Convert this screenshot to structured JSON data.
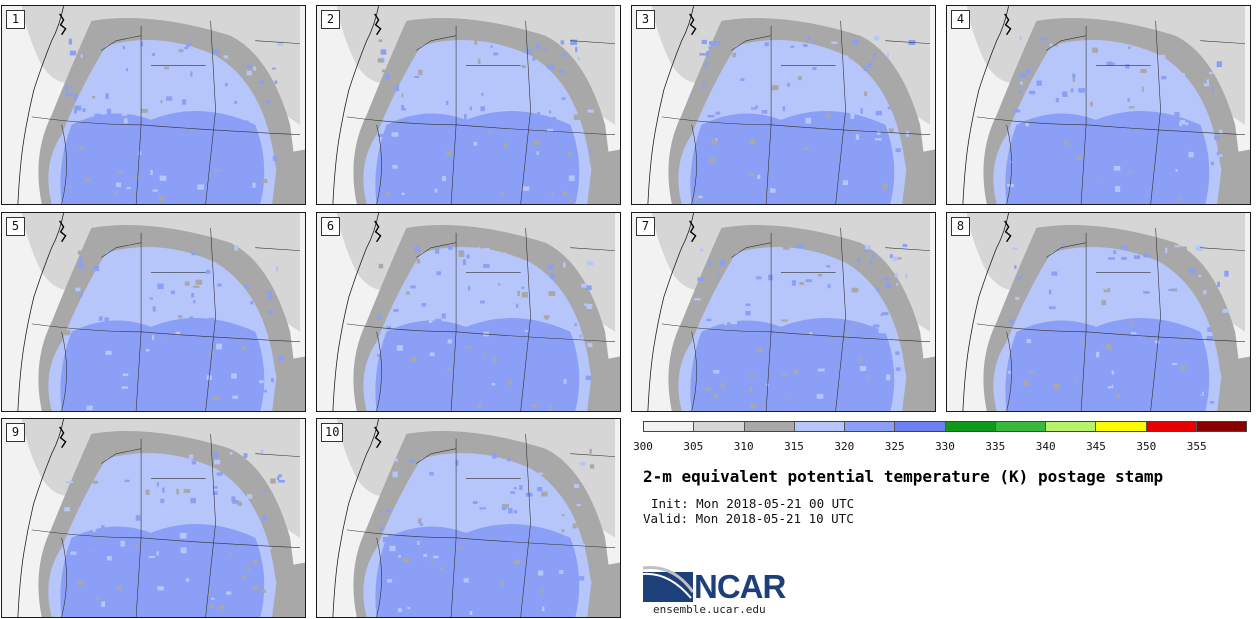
{
  "panels": [
    {
      "label": "1"
    },
    {
      "label": "2"
    },
    {
      "label": "3"
    },
    {
      "label": "4"
    },
    {
      "label": "5"
    },
    {
      "label": "6"
    },
    {
      "label": "7"
    },
    {
      "label": "8"
    },
    {
      "label": "9"
    },
    {
      "label": "10"
    }
  ],
  "colorbar": {
    "colors": [
      "#f2f2f2",
      "#d6d6d6",
      "#a8a8a8",
      "#b6c6fa",
      "#8a9ff5",
      "#6d80f2",
      "#0f9a1a",
      "#38b83c",
      "#b6f26a",
      "#fcfa07",
      "#e60000",
      "#8a0000"
    ],
    "ticks": [
      "300",
      "305",
      "310",
      "315",
      "320",
      "325",
      "330",
      "335",
      "340",
      "345",
      "350",
      "355"
    ]
  },
  "title": "2-m equivalent potential temperature (K) postage stamp",
  "init_text": "Init: Mon 2018-05-21 00 UTC",
  "valid_text": "Valid: Mon 2018-05-21 10 UTC",
  "logo": {
    "name": "NCAR",
    "url": "ensemble.ucar.edu",
    "arc_color": "#c0c0c0",
    "body_color": "#1d3f7a"
  }
}
